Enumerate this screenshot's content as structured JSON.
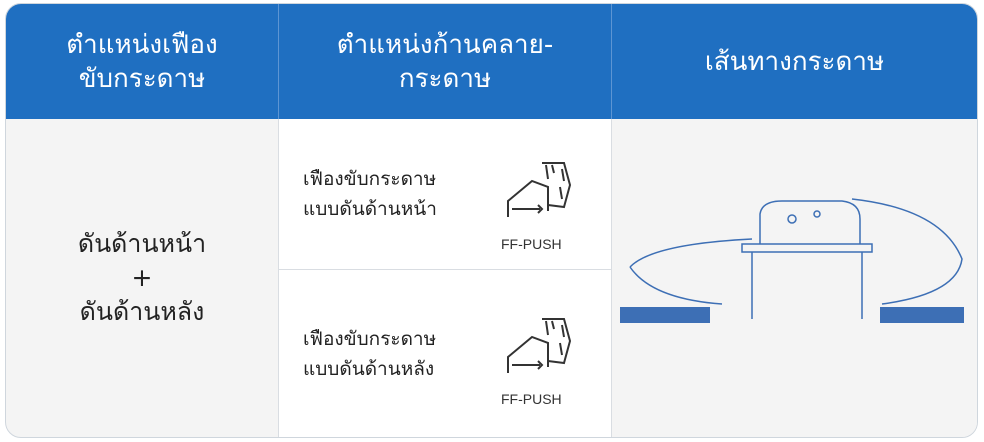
{
  "header": {
    "columns": [
      {
        "lines": [
          "ตำแหน่งเฟือง",
          "ขับกระดาษ"
        ]
      },
      {
        "lines": [
          "ตำแหน่งก้านคลาย-",
          "กระดาษ"
        ]
      },
      {
        "lines": [
          "เส้นทางกระดาษ"
        ]
      }
    ]
  },
  "row": {
    "position": {
      "lines": [
        "ดันด้านหน้า",
        "+",
        "ดันด้านหลัง"
      ]
    },
    "options": [
      {
        "lines": [
          "เฟืองขับกระดาษ",
          "แบบดันด้านหน้า"
        ],
        "icon_label": "FF-PUSH"
      },
      {
        "lines": [
          "เฟืองขับกระดาษ",
          "แบบดันด้านหลัง"
        ],
        "icon_label": "FF-PUSH"
      }
    ]
  }
}
